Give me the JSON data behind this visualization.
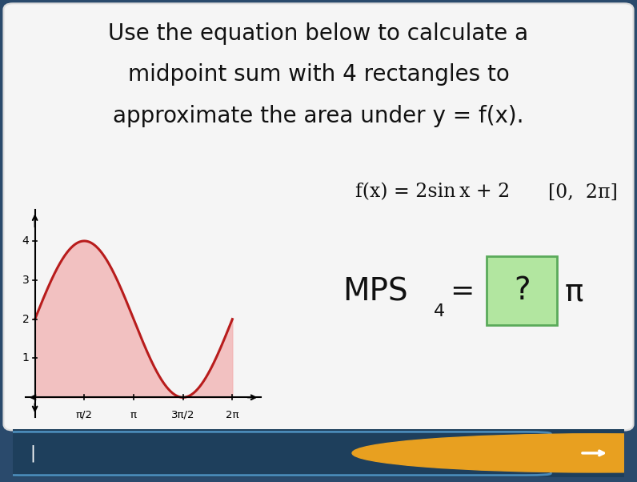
{
  "title_lines": [
    "Use the equation below to calculate a",
    "midpoint sum with 4 rectangles to",
    "approximate the area under y = f(x)."
  ],
  "title_fontsize": 20,
  "title_color": "#111111",
  "card_color": "#f2f2f2",
  "outer_bg": "#2a4a6c",
  "curve_color": "#b81c1c",
  "fill_color": "#f2b0b0",
  "fill_alpha": 0.75,
  "x_start": 0,
  "x_end": 6.2832,
  "ylim": [
    -0.5,
    4.8
  ],
  "xlim": [
    -0.3,
    7.2
  ],
  "yticks": [
    1,
    2,
    3,
    4
  ],
  "xtick_labels": [
    "π/2",
    "π",
    "3π/2",
    "2π"
  ],
  "xtick_vals": [
    1.5708,
    3.1416,
    4.7124,
    6.2832
  ],
  "formula_text": "f(x) = 2sin x + 2   [0,  2π]",
  "box_color": "#b2e6a0",
  "box_border": "#5aaa5a",
  "bottom_bg": "#1e3f5c",
  "input_border": "#4a8ab8",
  "arrow_btn_color": "#e8a020"
}
